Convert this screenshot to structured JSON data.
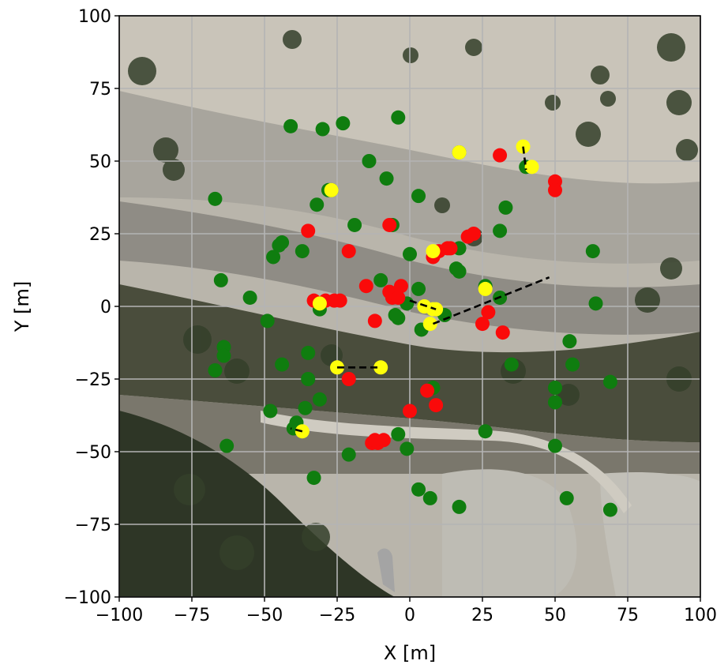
{
  "chart_data": {
    "type": "scatter",
    "title": "",
    "xlabel": "X [m]",
    "ylabel": "Y [m]",
    "xlim": [
      -100,
      100
    ],
    "ylim": [
      -100,
      100
    ],
    "xticks": [
      -100,
      -75,
      -50,
      -25,
      0,
      25,
      50,
      75,
      100
    ],
    "yticks": [
      -100,
      -75,
      -50,
      -25,
      0,
      25,
      50,
      75,
      100
    ],
    "xtick_labels": [
      "−100",
      "−75",
      "−50",
      "−25",
      "0",
      "25",
      "50",
      "75",
      "100"
    ],
    "ytick_labels": [
      "−100",
      "−75",
      "−50",
      "−25",
      "0",
      "25",
      "50",
      "75",
      "100"
    ],
    "grid": true,
    "background": "aerial orthophoto of dry riverbed with scattered shrubs",
    "colors": {
      "green": "#0f7d0f",
      "red": "#fa0a0a",
      "yellow": "#ffff0a",
      "dashed_line": "#000000",
      "grid": "#b4b4b4"
    },
    "series": [
      {
        "color": "green",
        "points": [
          [
            -41,
            62
          ],
          [
            -30,
            61
          ],
          [
            -23,
            63
          ],
          [
            -4,
            65
          ],
          [
            17,
            53
          ],
          [
            -14,
            50
          ],
          [
            -8,
            44
          ],
          [
            3,
            38
          ],
          [
            -27,
            40
          ],
          [
            -67,
            37
          ],
          [
            -32,
            35
          ],
          [
            33,
            34
          ],
          [
            -19,
            28
          ],
          [
            -6,
            28
          ],
          [
            31,
            26
          ],
          [
            -45,
            21
          ],
          [
            -44,
            22
          ],
          [
            -47,
            17
          ],
          [
            -37,
            19
          ],
          [
            0,
            18
          ],
          [
            17,
            20
          ],
          [
            16,
            13
          ],
          [
            17,
            12
          ],
          [
            -65,
            9
          ],
          [
            -10,
            9
          ],
          [
            26,
            7
          ],
          [
            3,
            6
          ],
          [
            -55,
            3
          ],
          [
            31,
            3
          ],
          [
            64,
            1
          ],
          [
            -1,
            1
          ],
          [
            -31,
            -1
          ],
          [
            -49,
            -5
          ],
          [
            -4,
            -4
          ],
          [
            -5,
            -3
          ],
          [
            12,
            -3
          ],
          [
            4,
            -8
          ],
          [
            -35,
            -16
          ],
          [
            -64,
            -14
          ],
          [
            -64,
            -17
          ],
          [
            -44,
            -20
          ],
          [
            35,
            -20
          ],
          [
            56,
            -20
          ],
          [
            -67,
            -22
          ],
          [
            -35,
            -25
          ],
          [
            69,
            -26
          ],
          [
            8,
            -28
          ],
          [
            50,
            -28
          ],
          [
            -48,
            -36
          ],
          [
            -36,
            -35
          ],
          [
            -31,
            -32
          ],
          [
            50,
            -33
          ],
          [
            -39,
            -40
          ],
          [
            26,
            -43
          ],
          [
            -4,
            -44
          ],
          [
            -1,
            -49
          ],
          [
            -40,
            -42
          ],
          [
            -63,
            -48
          ],
          [
            50,
            -48
          ],
          [
            -21,
            -51
          ],
          [
            -33,
            -59
          ],
          [
            3,
            -63
          ],
          [
            7,
            -66
          ],
          [
            17,
            -69
          ],
          [
            54,
            -66
          ],
          [
            69,
            -70
          ],
          [
            55,
            -12
          ],
          [
            63,
            19
          ],
          [
            40,
            48
          ],
          [
            -28,
            40
          ]
        ]
      },
      {
        "color": "red",
        "points": [
          [
            31,
            52
          ],
          [
            50,
            43
          ],
          [
            50,
            40
          ],
          [
            -7,
            28
          ],
          [
            22,
            25
          ],
          [
            20,
            24
          ],
          [
            -35,
            26
          ],
          [
            14,
            20
          ],
          [
            13,
            20
          ],
          [
            10,
            19
          ],
          [
            8,
            17
          ],
          [
            -21,
            19
          ],
          [
            -15,
            7
          ],
          [
            -3,
            7
          ],
          [
            -7,
            5
          ],
          [
            -6,
            3
          ],
          [
            -33,
            2
          ],
          [
            -29,
            2
          ],
          [
            -26,
            2
          ],
          [
            -24,
            2
          ],
          [
            -4,
            3
          ],
          [
            27,
            -2
          ],
          [
            25,
            -6
          ],
          [
            32,
            -9
          ],
          [
            -12,
            -5
          ],
          [
            -21,
            -25
          ],
          [
            6,
            -29
          ],
          [
            9,
            -34
          ],
          [
            0,
            -36
          ],
          [
            -13,
            -47
          ],
          [
            -11,
            -47
          ],
          [
            -9,
            -46
          ],
          [
            -12,
            -46
          ]
        ]
      },
      {
        "color": "yellow",
        "points": [
          [
            17,
            53
          ],
          [
            39,
            55
          ],
          [
            42,
            48
          ],
          [
            -27,
            40
          ],
          [
            8,
            19
          ],
          [
            26,
            6
          ],
          [
            5,
            0
          ],
          [
            8,
            -1
          ],
          [
            7,
            -6
          ],
          [
            -31,
            1
          ],
          [
            -25,
            -21
          ],
          [
            -10,
            -21
          ],
          [
            -37,
            -43
          ],
          [
            9,
            -1
          ]
        ]
      }
    ],
    "dashed_segments": [
      [
        [
          39,
          55
        ],
        [
          40,
          47
        ]
      ],
      [
        [
          0,
          2
        ],
        [
          9,
          -1
        ]
      ],
      [
        [
          8,
          -6
        ],
        [
          48,
          10
        ]
      ],
      [
        [
          -25,
          -21
        ],
        [
          -10,
          -21
        ]
      ],
      [
        [
          -37,
          -43
        ],
        [
          -41,
          -42
        ]
      ]
    ]
  }
}
